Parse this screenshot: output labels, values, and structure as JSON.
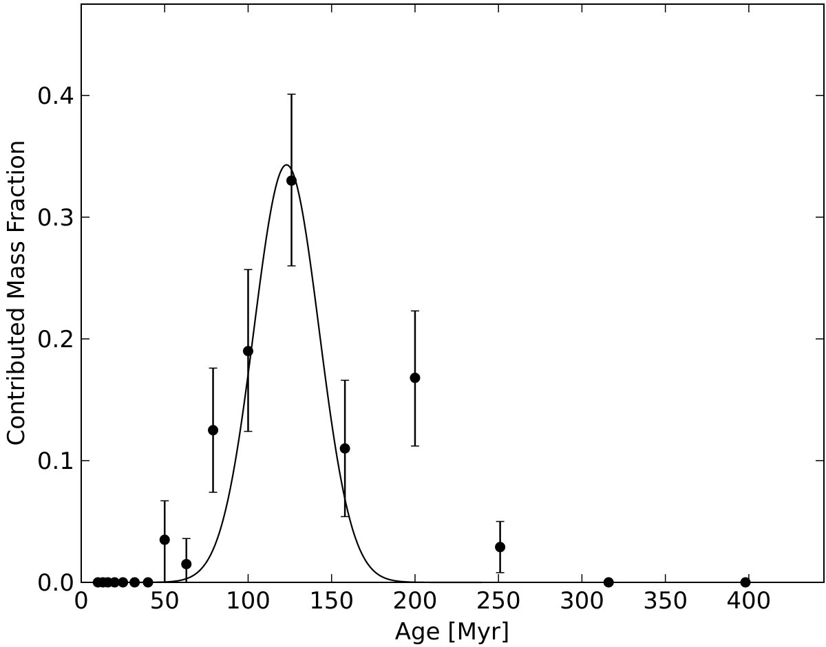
{
  "chart_data": {
    "type": "scatter",
    "title": "",
    "xlabel": "Age [Myr]",
    "ylabel": "Contributed Mass Fraction",
    "xlim": [
      0,
      445
    ],
    "ylim": [
      0,
      0.475
    ],
    "x_ticks": [
      0,
      50,
      100,
      150,
      200,
      250,
      300,
      350,
      400
    ],
    "x_tick_labels": [
      "0",
      "50",
      "100",
      "150",
      "200",
      "250",
      "300",
      "350",
      "400"
    ],
    "y_ticks": [
      0.0,
      0.1,
      0.2,
      0.3,
      0.4
    ],
    "y_tick_labels": [
      "0.0",
      "0.1",
      "0.2",
      "0.3",
      "0.4"
    ],
    "grid": false,
    "series": [
      {
        "type": "scatter",
        "color": "#000000",
        "points": [
          {
            "x": 10,
            "y": 0.0
          },
          {
            "x": 13,
            "y": 0.0
          },
          {
            "x": 16,
            "y": 0.0
          },
          {
            "x": 20,
            "y": 0.0
          },
          {
            "x": 25,
            "y": 0.0
          },
          {
            "x": 32,
            "y": 0.0
          },
          {
            "x": 40,
            "y": 0.0
          },
          {
            "x": 50,
            "y": 0.035,
            "ylow": 0.0,
            "yhigh": 0.067
          },
          {
            "x": 63,
            "y": 0.015,
            "ylow": 0.0,
            "yhigh": 0.036
          },
          {
            "x": 79,
            "y": 0.125,
            "ylow": 0.074,
            "yhigh": 0.176
          },
          {
            "x": 100,
            "y": 0.19,
            "ylow": 0.124,
            "yhigh": 0.257
          },
          {
            "x": 126,
            "y": 0.33,
            "ylow": 0.26,
            "yhigh": 0.401
          },
          {
            "x": 158,
            "y": 0.11,
            "ylow": 0.054,
            "yhigh": 0.166
          },
          {
            "x": 200,
            "y": 0.168,
            "ylow": 0.112,
            "yhigh": 0.223
          },
          {
            "x": 251,
            "y": 0.029,
            "ylow": 0.008,
            "yhigh": 0.05
          },
          {
            "x": 316,
            "y": 0.0
          },
          {
            "x": 398,
            "y": 0.0
          }
        ]
      },
      {
        "type": "line",
        "color": "#000000",
        "model": "gaussian",
        "peak_x": 123,
        "peak_y": 0.343,
        "sigma": 19.5
      }
    ]
  }
}
